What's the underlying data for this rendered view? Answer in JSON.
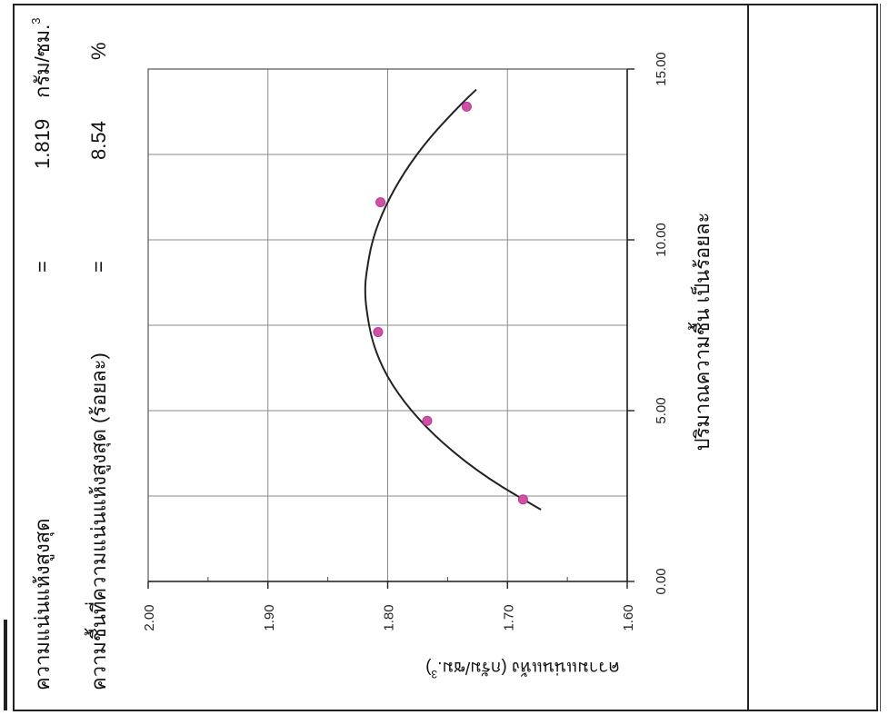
{
  "header": {
    "max_density_label": "ความแน่นแห้งสูงสุด",
    "max_density_eq": "=",
    "max_density_value": "1.819",
    "max_density_unit": "กรัม/ซม.",
    "max_density_unit_sup": "3",
    "omc_label": "ความชื้นที่ความแน่นแห้งสูงสุด (ร้อยละ)",
    "omc_eq": "=",
    "omc_value": "8.54",
    "omc_unit": "%"
  },
  "chart_data": {
    "type": "scatter",
    "title": "",
    "xlabel": "ปริมาณความชื้น เป็นร้อยละ",
    "ylabel": "ความแน่นแห้ง (กรัม/ซม.",
    "ylabel_sup": "3",
    "ylabel_suffix": ")",
    "xlim": [
      0,
      15
    ],
    "ylim": [
      1.6,
      2.0
    ],
    "x_ticks": [
      0,
      5,
      10,
      15
    ],
    "x_tick_labels": [
      "0.00",
      "5.00",
      "10.00",
      "15.00"
    ],
    "y_ticks": [
      1.6,
      1.7,
      1.8,
      1.9,
      2.0
    ],
    "y_tick_labels": [
      "1.60",
      "1.70",
      "1.80",
      "1.90",
      "2.00"
    ],
    "grid": true,
    "orientation": "rotated-90-ccw",
    "series": [
      {
        "type": "scatter",
        "color": "#d24fa8",
        "x": [
          2.4,
          4.7,
          7.3,
          11.1,
          13.9
        ],
        "y": [
          1.687,
          1.767,
          1.808,
          1.806,
          1.734
        ]
      },
      {
        "type": "line",
        "color": "#222222",
        "x": [
          2.1,
          3.0,
          4.0,
          5.0,
          6.0,
          7.0,
          8.0,
          8.54,
          9.0,
          10.0,
          11.0,
          12.0,
          13.0,
          14.0,
          14.4
        ],
        "y": [
          1.672,
          1.716,
          1.753,
          1.781,
          1.801,
          1.813,
          1.818,
          1.819,
          1.818,
          1.813,
          1.802,
          1.786,
          1.765,
          1.738,
          1.726
        ]
      }
    ]
  }
}
